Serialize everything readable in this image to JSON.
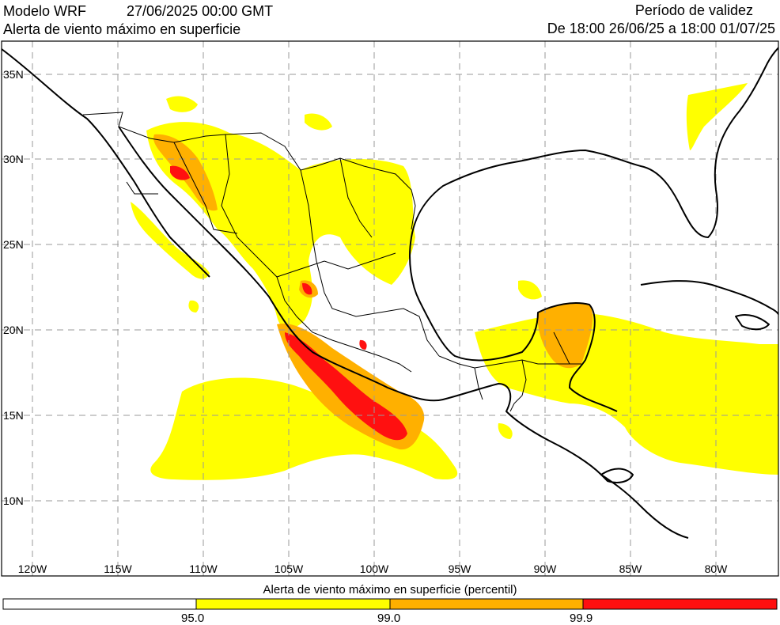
{
  "header": {
    "model": "Modelo WRF",
    "date": "27/06/2025 00:00 GMT",
    "subtitle": "Alerta de viento máximo en superficie",
    "validity_title": "Período de validez",
    "validity_range": "De 18:00 26/06/25 a 18:00 01/07/25"
  },
  "map": {
    "lon_labels": [
      "120W",
      "115W",
      "110W",
      "105W",
      "100W",
      "95W",
      "90W",
      "85W",
      "80W"
    ],
    "lat_labels": [
      "35N",
      "30N",
      "25N",
      "20N",
      "15N",
      "10N"
    ],
    "colors": {
      "p95": "#ffff00",
      "p99": "#ffb000",
      "p999": "#ff1010",
      "coast": "#000000",
      "grid": "#9a9a9a"
    }
  },
  "legend": {
    "title": "Alerta de viento máximo en superficie (percentil)",
    "labels": [
      "95.0",
      "99.0",
      "99.9"
    ],
    "colors": [
      "#ffffff",
      "#ffff00",
      "#ffb000",
      "#ff1010"
    ]
  }
}
